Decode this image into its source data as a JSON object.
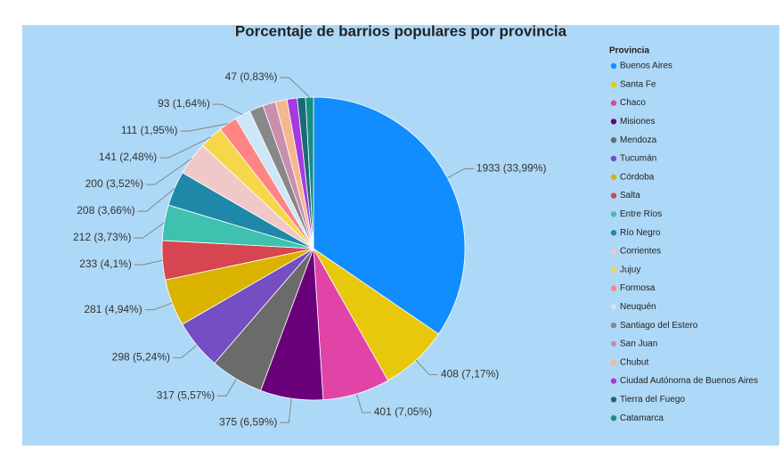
{
  "chart_data": {
    "type": "pie",
    "title": "Porcentaje de barrios populares por provincia",
    "legend_title": "Provincia",
    "categories": [
      "Buenos Aires",
      "Santa Fe",
      "Chaco",
      "Misiones",
      "Mendoza",
      "Tucumán",
      "Córdoba",
      "Salta",
      "Entre Ríos",
      "Río Negro",
      "Corrientes",
      "Jujuy",
      "Formosa",
      "Neuquén",
      "Santiago del Estero",
      "San Juan",
      "Chubut",
      "Ciudad Autónoma de Buenos Aires",
      "Tierra del Fuego",
      "Catamarca"
    ],
    "values": [
      1933,
      408,
      401,
      375,
      317,
      298,
      281,
      233,
      212,
      208,
      200,
      141,
      111,
      93,
      84,
      76,
      70,
      60,
      50,
      47
    ],
    "value_labels": [
      "1933 (33,99%)",
      "408 (7,17%)",
      "401 (7,05%)",
      "375 (6,59%)",
      "317 (5,57%)",
      "298 (5,24%)",
      "281 (4,94%)",
      "233 (4,1%)",
      "212 (3,73%)",
      "208 (3,66%)",
      "200 (3,52%)",
      "141 (2,48%)",
      "111 (1,95%)",
      "93 (1,64%)",
      null,
      null,
      null,
      null,
      null,
      "47 (0,83%)"
    ],
    "colors": [
      "#118DFF",
      "#E8C80C",
      "#E044A7",
      "#6B007B",
      "#6B6B6B",
      "#744EC2",
      "#D9B300",
      "#D64550",
      "#3FC1B0",
      "#1F88A8",
      "#F0C8C8",
      "#F5D84A",
      "#FF8585",
      "#CDE6F8",
      "#888888",
      "#C98FAE",
      "#F5B88E",
      "#A43BE0",
      "#1A6B7A",
      "#168E80"
    ],
    "legend_position": "right"
  }
}
